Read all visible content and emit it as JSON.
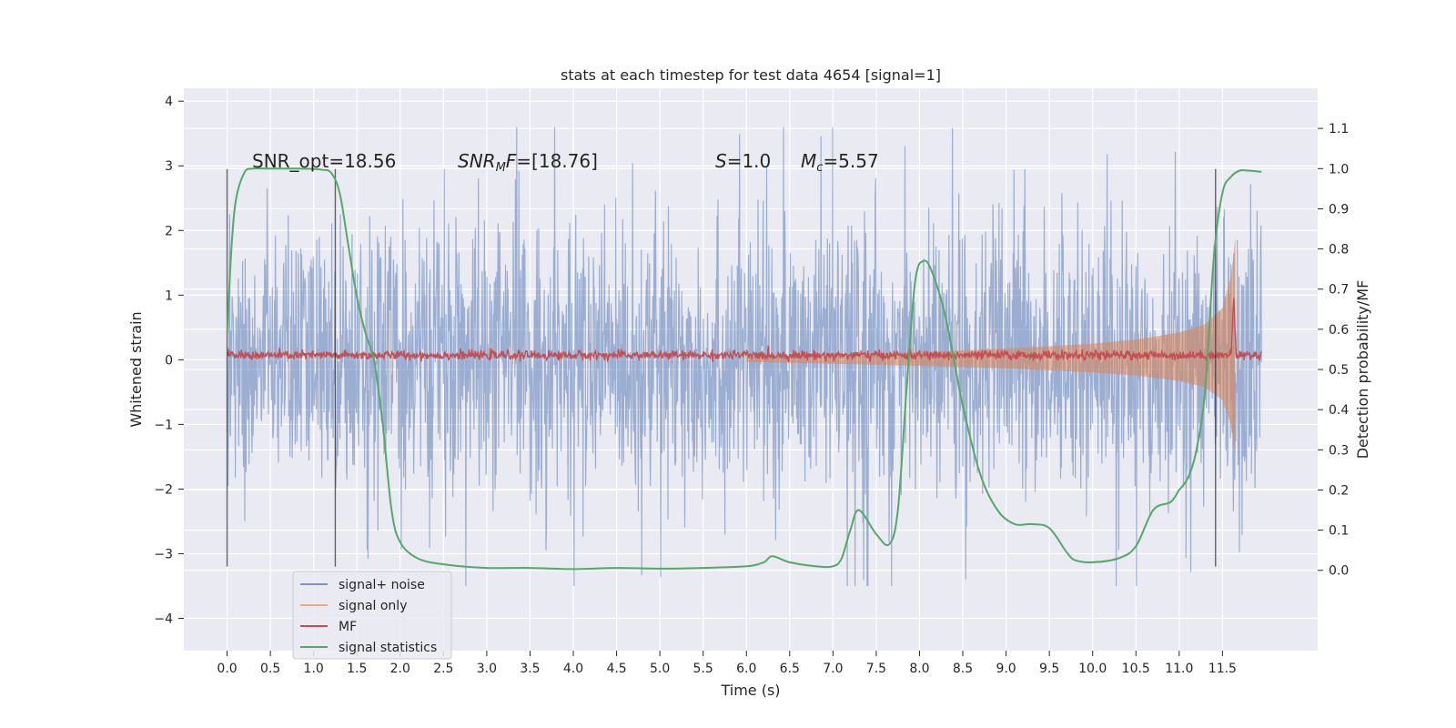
{
  "chart_data": {
    "type": "line",
    "title": "stats at each timestep for test data 4654 [signal=1]",
    "xlabel": "Time (s)",
    "ylabel_left": "Whitened strain",
    "ylabel_right": "Detection probability/MF",
    "xlim": [
      -0.5,
      12.6
    ],
    "ylim_left": [
      -4.5,
      4.2
    ],
    "ylim_right": [
      -0.2,
      1.2
    ],
    "x_ticks": [
      "0.0",
      "0.5",
      "1.0",
      "1.5",
      "2.0",
      "2.5",
      "3.0",
      "3.5",
      "4.0",
      "4.5",
      "5.0",
      "5.5",
      "6.0",
      "6.5",
      "7.0",
      "7.5",
      "8.0",
      "8.5",
      "9.0",
      "9.5",
      "10.0",
      "10.5",
      "11.0",
      "11.5"
    ],
    "y_ticks_left": [
      "−4",
      "−3",
      "−2",
      "−1",
      "0",
      "1",
      "2",
      "3",
      "4"
    ],
    "y_ticks_right": [
      "0.0",
      "0.1",
      "0.2",
      "0.3",
      "0.4",
      "0.5",
      "0.6",
      "0.7",
      "0.8",
      "0.9",
      "1.0",
      "1.1"
    ],
    "grid": true,
    "legend_position": "bottom-left",
    "annotations": {
      "snr_opt": "SNR_opt=18.56",
      "snr_mf_main": "SNR",
      "snr_mf_sub": "M",
      "snr_mf_rest": "F=[18.76]",
      "s_sym": "S",
      "s_val": "=1.0",
      "mc_sym": "M",
      "mc_sub": "c",
      "mc_val": "=5.57"
    },
    "vertical_markers": [
      0.0,
      1.25,
      11.42
    ],
    "series": [
      {
        "name": "signal+ noise",
        "color": "#4c72b0",
        "axis": "left",
        "description_x_range": [
          0.0,
          11.95
        ],
        "amplitude_envelope": [
          -3.5,
          3.6
        ]
      },
      {
        "name": "signal only",
        "color": "#dd8452",
        "axis": "left",
        "envelope": {
          "x": [
            6.0,
            7.0,
            8.0,
            9.0,
            10.0,
            10.5,
            11.0,
            11.3,
            11.5,
            11.6,
            11.65
          ],
          "amp": [
            0.04,
            0.08,
            0.12,
            0.17,
            0.25,
            0.31,
            0.42,
            0.55,
            0.8,
            1.3,
            1.9
          ]
        }
      },
      {
        "name": "MF",
        "color": "#c44e52",
        "axis": "left",
        "baseline": 0.07,
        "spike": {
          "x": 11.63,
          "y": 1.0
        }
      },
      {
        "name": "signal statistics",
        "color": "#55a868",
        "axis": "right",
        "x": [
          0.0,
          0.05,
          0.1,
          0.2,
          0.3,
          0.5,
          0.8,
          1.0,
          1.1,
          1.2,
          1.3,
          1.4,
          1.5,
          1.6,
          1.7,
          1.8,
          1.9,
          2.0,
          2.2,
          2.5,
          3.0,
          3.5,
          4.0,
          4.5,
          5.0,
          5.5,
          6.0,
          6.2,
          6.3,
          6.5,
          6.8,
          7.0,
          7.1,
          7.2,
          7.3,
          7.5,
          7.65,
          7.75,
          7.85,
          7.95,
          8.05,
          8.15,
          8.3,
          8.5,
          8.7,
          8.9,
          9.1,
          9.3,
          9.5,
          9.7,
          9.8,
          10.0,
          10.3,
          10.5,
          10.7,
          10.9,
          11.0,
          11.1,
          11.2,
          11.3,
          11.4,
          11.5,
          11.6,
          11.7,
          11.8,
          11.95
        ],
        "y": [
          0.59,
          0.8,
          0.92,
          0.99,
          1.0,
          1.0,
          1.0,
          0.999,
          0.997,
          0.99,
          0.94,
          0.81,
          0.68,
          0.59,
          0.52,
          0.36,
          0.15,
          0.07,
          0.03,
          0.015,
          0.006,
          0.006,
          0.003,
          0.006,
          0.004,
          0.006,
          0.01,
          0.02,
          0.035,
          0.02,
          0.01,
          0.01,
          0.03,
          0.1,
          0.15,
          0.09,
          0.065,
          0.15,
          0.45,
          0.72,
          0.77,
          0.74,
          0.63,
          0.41,
          0.24,
          0.15,
          0.115,
          0.115,
          0.105,
          0.045,
          0.025,
          0.02,
          0.03,
          0.06,
          0.15,
          0.17,
          0.2,
          0.23,
          0.3,
          0.45,
          0.78,
          0.94,
          0.98,
          0.995,
          0.995,
          0.992
        ]
      }
    ],
    "legend": [
      {
        "label": "signal+ noise",
        "color": "#4c72b0"
      },
      {
        "label": "signal only",
        "color": "#dd8452"
      },
      {
        "label": "MF",
        "color": "#c44e52"
      },
      {
        "label": "signal statistics",
        "color": "#55a868"
      }
    ]
  }
}
